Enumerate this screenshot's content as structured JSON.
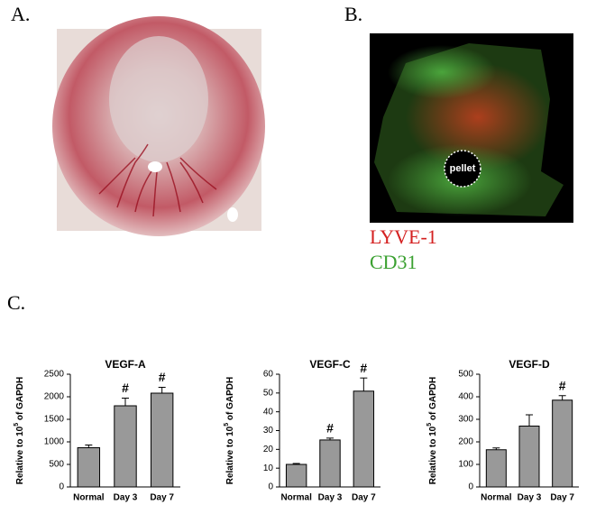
{
  "panels": {
    "a_label": "A.",
    "b_label": "B.",
    "lyve": "LYVE-1",
    "cd31": "CD31",
    "pellet": "pellet",
    "c_label": "C."
  },
  "chart_data": [
    {
      "type": "bar",
      "title": "VEGF-A",
      "y_label": [
        "Relative to 10",
        "5",
        " of GAPDH"
      ],
      "categories": [
        "Normal",
        "Day 3",
        "Day 7"
      ],
      "values": [
        870,
        1800,
        2080
      ],
      "errors": [
        60,
        170,
        130
      ],
      "labels": [
        null,
        "#",
        "#"
      ],
      "color": "#999999",
      "ylim": [
        0,
        2500
      ],
      "yticks": [
        0,
        500,
        1000,
        1500,
        2000,
        2500
      ]
    },
    {
      "type": "bar",
      "title": "VEGF-C",
      "y_label": [
        "Relative to 10",
        "5",
        " of GAPDH"
      ],
      "categories": [
        "Normal",
        "Day 3",
        "Day 7"
      ],
      "values": [
        12,
        25,
        51
      ],
      "errors": [
        0.5,
        1,
        7
      ],
      "labels": [
        null,
        "#",
        "#"
      ],
      "color": "#999999",
      "ylim": [
        0,
        60
      ],
      "yticks": [
        0,
        10,
        20,
        30,
        40,
        50,
        60
      ]
    },
    {
      "type": "bar",
      "title": "VEGF-D",
      "y_label": [
        "Relative to 10",
        "5",
        " of GAPDH"
      ],
      "categories": [
        "Normal",
        "Day 3",
        "Day 7"
      ],
      "values": [
        165,
        270,
        385
      ],
      "errors": [
        8,
        50,
        20
      ],
      "labels": [
        null,
        null,
        "#"
      ],
      "color": "#999999",
      "ylim": [
        0,
        500
      ],
      "yticks": [
        0,
        100,
        200,
        300,
        400,
        500
      ]
    }
  ]
}
